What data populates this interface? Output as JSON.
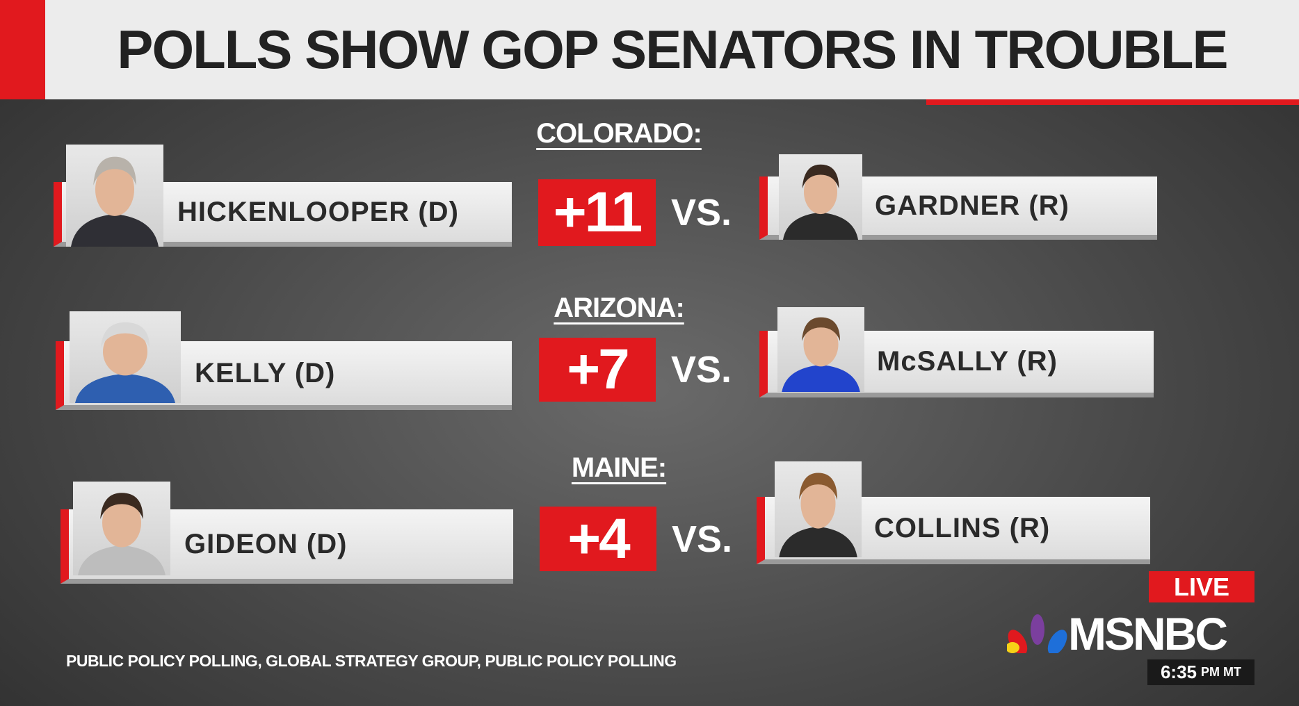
{
  "header": {
    "title": "POLLS SHOW GOP SENATORS IN TROUBLE"
  },
  "races": [
    {
      "state": "COLORADO:",
      "dem": "HICKENLOOPER (D)",
      "margin": "+11",
      "vs": "VS.",
      "rep": "GARDNER (R)"
    },
    {
      "state": "ARIZONA:",
      "dem": "KELLY (D)",
      "margin": "+7",
      "vs": "VS.",
      "rep": "McSALLY (R)"
    },
    {
      "state": "MAINE:",
      "dem": "GIDEON (D)",
      "margin": "+4",
      "vs": "VS.",
      "rep": "COLLINS (R)"
    }
  ],
  "source": "PUBLIC POLICY POLLING, GLOBAL STRATEGY GROUP, PUBLIC POLICY POLLING",
  "network": {
    "live": "LIVE",
    "logo": "MSNBC",
    "time": "6:35",
    "zone": "PM MT"
  }
}
